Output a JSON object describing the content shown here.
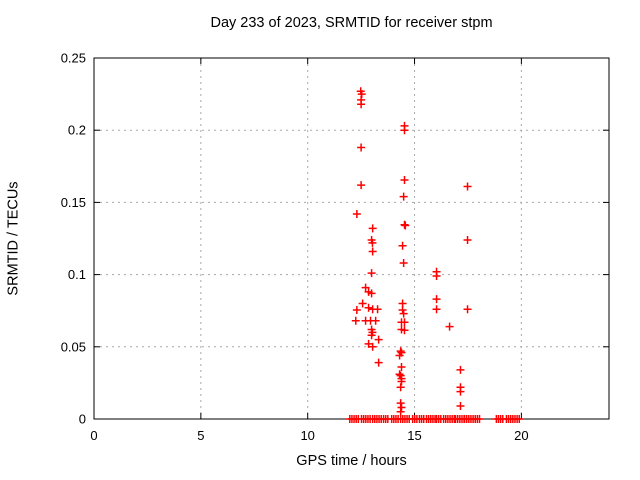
{
  "chart_data": {
    "type": "scatter",
    "title": "Day 233 of 2023, SRMTID for receiver stpm",
    "xlabel": "GPS time / hours",
    "ylabel": "SRMTID / TECUs",
    "xlim": [
      0,
      24.1
    ],
    "ylim": [
      0,
      0.25
    ],
    "x_ticks": [
      0,
      5,
      10,
      15,
      20
    ],
    "x_tick_labels": [
      "0",
      "5",
      "10",
      "15",
      "20"
    ],
    "y_ticks": [
      0,
      0.05,
      0.1,
      0.15,
      0.2,
      0.25
    ],
    "y_tick_labels": [
      "0",
      "0.05",
      "0.1",
      "0.15",
      "0.2",
      "0.25"
    ],
    "grid": true,
    "legend": "none",
    "marker": {
      "style": "plus",
      "color": "#ff0000",
      "size": 8
    },
    "series": [
      {
        "name": "SRMTID",
        "points": [
          [
            12.25,
            0.068
          ],
          [
            12.3,
            0.142
          ],
          [
            12.3,
            0.0755
          ],
          [
            12.48,
            0.227
          ],
          [
            12.53,
            0.225
          ],
          [
            12.5,
            0.221
          ],
          [
            12.5,
            0.218
          ],
          [
            12.5,
            0.188
          ],
          [
            12.5,
            0.162
          ],
          [
            12.57,
            0.08
          ],
          [
            12.71,
            0.091
          ],
          [
            12.71,
            0.068
          ],
          [
            12.85,
            0.088
          ],
          [
            12.85,
            0.077
          ],
          [
            12.85,
            0.052
          ],
          [
            12.94,
            0.068
          ],
          [
            12.99,
            0.124
          ],
          [
            13.03,
            0.122
          ],
          [
            12.99,
            0.101
          ],
          [
            12.99,
            0.087
          ],
          [
            12.99,
            0.062
          ],
          [
            13.03,
            0.06
          ],
          [
            12.99,
            0.058
          ],
          [
            13.04,
            0.132
          ],
          [
            13.04,
            0.116
          ],
          [
            13.04,
            0.076
          ],
          [
            13.04,
            0.05
          ],
          [
            13.18,
            0.068
          ],
          [
            13.27,
            0.076
          ],
          [
            13.32,
            0.055
          ],
          [
            13.32,
            0.039
          ],
          [
            14.3,
            0.044
          ],
          [
            14.3,
            0.031
          ],
          [
            14.35,
            0.047
          ],
          [
            14.35,
            0.03
          ],
          [
            14.35,
            0.022
          ],
          [
            14.35,
            0.011
          ],
          [
            14.35,
            0.005
          ],
          [
            14.39,
            0.046
          ],
          [
            14.39,
            0.036
          ],
          [
            14.39,
            0.028
          ],
          [
            14.39,
            0.026
          ],
          [
            14.39,
            0.008
          ],
          [
            14.39,
            0.067
          ],
          [
            14.39,
            0.062
          ],
          [
            14.44,
            0.12
          ],
          [
            14.44,
            0.08
          ],
          [
            14.44,
            0.0755
          ],
          [
            14.49,
            0.154
          ],
          [
            14.49,
            0.108
          ],
          [
            14.49,
            0.073
          ],
          [
            14.53,
            0.203
          ],
          [
            14.53,
            0.2
          ],
          [
            14.53,
            0.1655
          ],
          [
            14.53,
            0.1345
          ],
          [
            14.57,
            0.134
          ],
          [
            14.53,
            0.067
          ],
          [
            14.53,
            0.0615
          ],
          [
            16.03,
            0.102
          ],
          [
            16.03,
            0.099
          ],
          [
            16.03,
            0.083
          ],
          [
            16.03,
            0.076
          ],
          [
            16.64,
            0.064
          ],
          [
            17.15,
            0.034
          ],
          [
            17.15,
            0.022
          ],
          [
            17.15,
            0.019
          ],
          [
            17.15,
            0.009
          ],
          [
            17.48,
            0.161
          ],
          [
            17.48,
            0.124
          ],
          [
            17.48,
            0.076
          ]
        ]
      }
    ],
    "zero_line_markers": {
      "y": 0,
      "spacing_hours": 0.1,
      "segments": [
        [
          11.97,
          12.38
        ],
        [
          12.52,
          12.94
        ],
        [
          13.04,
          13.41
        ],
        [
          13.55,
          13.79
        ],
        [
          13.93,
          14.21
        ],
        [
          14.35,
          14.77
        ],
        [
          14.91,
          15.09
        ],
        [
          15.23,
          15.47
        ],
        [
          15.56,
          15.93
        ],
        [
          16.03,
          16.26
        ],
        [
          16.36,
          16.82
        ],
        [
          16.92,
          17.29
        ],
        [
          17.34,
          18.08
        ],
        [
          18.83,
          19.15
        ],
        [
          19.3,
          19.95
        ]
      ]
    }
  },
  "colors": {
    "marker": "#ff0000",
    "grid": "#a8a8a8",
    "axis": "#000000",
    "background": "#ffffff",
    "text": "#000000"
  }
}
